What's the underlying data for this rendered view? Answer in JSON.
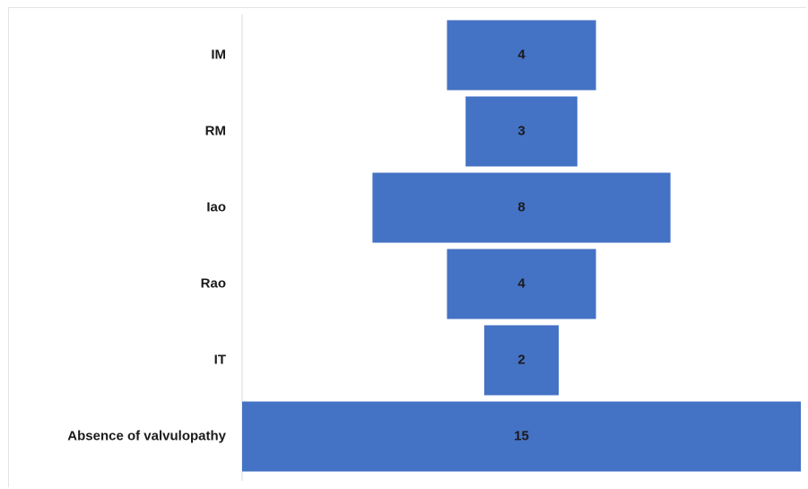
{
  "chart_data": {
    "type": "bar",
    "orientation": "horizontal",
    "layout": "centered (funnel)",
    "categories": [
      "IM",
      "RM",
      "Iao",
      "Rao",
      "IT",
      "Absence of valvulopathy"
    ],
    "values": [
      4,
      3,
      8,
      4,
      2,
      15
    ],
    "data_labels": [
      "4",
      "3",
      "8",
      "4",
      "2",
      "15"
    ],
    "title": "",
    "xlabel": "",
    "ylabel": "",
    "xlim": [
      0,
      15
    ],
    "grid": false,
    "legend": "none",
    "bar_color": "#4472C4"
  }
}
